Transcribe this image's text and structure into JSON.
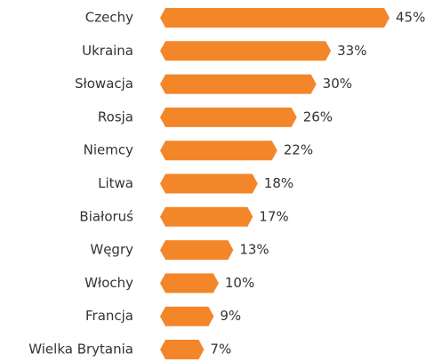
{
  "chart_data": {
    "type": "bar",
    "orientation": "horizontal",
    "categories": [
      "Czechy",
      "Ukraina",
      "Słowacja",
      "Rosja",
      "Niemcy",
      "Litwa",
      "Białoruś",
      "Węgry",
      "Włochy",
      "Francja",
      "Wielka Brytania"
    ],
    "values": [
      45,
      33,
      30,
      26,
      22,
      18,
      17,
      13,
      10,
      9,
      7
    ],
    "value_labels": [
      "45%",
      "33%",
      "30%",
      "26%",
      "22%",
      "18%",
      "17%",
      "13%",
      "10%",
      "9%",
      "7%"
    ],
    "color": "#f4862a"
  }
}
